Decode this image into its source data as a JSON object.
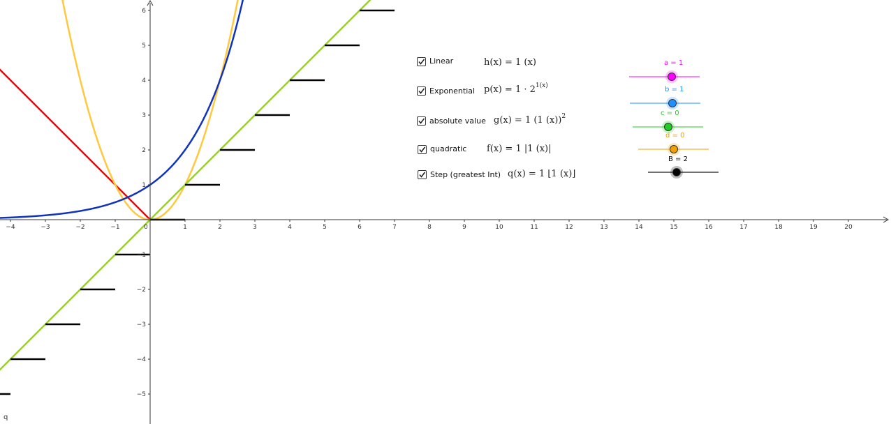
{
  "graph": {
    "x_ticks": [
      "−4",
      "−3",
      "−2",
      "−1",
      "0",
      "1",
      "2",
      "3",
      "4",
      "5",
      "6",
      "7",
      "8",
      "9",
      "10",
      "11",
      "12",
      "13",
      "14",
      "15",
      "16",
      "17",
      "18",
      "19",
      "20"
    ],
    "y_ticks": [
      "6",
      "5",
      "4",
      "3",
      "2",
      "1",
      "−1",
      "−2",
      "−3",
      "−4",
      "−5"
    ],
    "corner_label": "q"
  },
  "functions": [
    {
      "checkbox_label": "Linear",
      "name": "h(x)",
      "expr": " = 1 (x)",
      "sup": "",
      "color": "#9ACD32",
      "checked": true
    },
    {
      "checkbox_label": "Exponential",
      "name": "p(x)",
      "expr": " = 1 · 2",
      "sup": "1(x)",
      "color": "#1033BB",
      "checked": true
    },
    {
      "checkbox_label": "absolute value",
      "name": "g(x)",
      "expr": " = 1 (1 (x))",
      "sup": "2",
      "color": "#FFC83D",
      "checked": true
    },
    {
      "checkbox_label": "quadratic",
      "name": "f(x)",
      "expr": " = 1 |1 (x)|",
      "sup": "",
      "color": "#FF0000",
      "checked": true
    },
    {
      "checkbox_label": "Step (greatest Int)",
      "name": "q(x)",
      "expr": " = 1 ⌊1 (x)⌋",
      "sup": "",
      "color": "#000000",
      "checked": true
    }
  ],
  "sliders": [
    {
      "label": "a = 1",
      "value": 1,
      "color": "#FF00FF"
    },
    {
      "label": "b = 1",
      "value": 1,
      "color": "#1E90FF"
    },
    {
      "label": "c = 0",
      "value": 0,
      "color": "#22CC22"
    },
    {
      "label": "d = 0",
      "value": 0,
      "color": "#F0A000"
    },
    {
      "label": "B = 2",
      "value": 2,
      "color": "#000000"
    }
  ]
}
